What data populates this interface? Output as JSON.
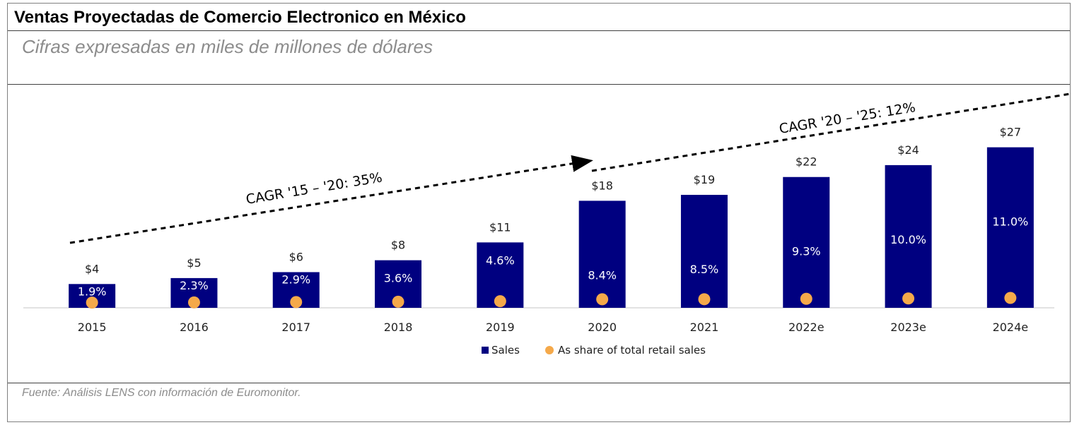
{
  "header": {
    "title": "Ventas Proyectadas de Comercio Electronico en México"
  },
  "subheader": {
    "subtitle": "Cifras expresadas en miles de millones de dólares"
  },
  "footer": {
    "source": "Fuente: Análisis LENS con información de Euromonitor."
  },
  "chart_data": {
    "type": "bar",
    "title": "",
    "xlabel": "",
    "ylabel": "",
    "categories": [
      "2015",
      "2016",
      "2017",
      "2018",
      "2019",
      "2020",
      "2021",
      "2022e",
      "2023e",
      "2024e"
    ],
    "ylim": [
      0,
      30
    ],
    "series": [
      {
        "name": "Sales",
        "values": [
          4,
          5,
          6,
          8,
          11,
          18,
          19,
          22,
          24,
          27
        ],
        "value_labels": [
          "$4",
          "$5",
          "$6",
          "$8",
          "$11",
          "$18",
          "$19",
          "$22",
          "$24",
          "$27"
        ],
        "color": "#000080"
      },
      {
        "name": "As share of total retail sales",
        "values": [
          1.9,
          2.3,
          2.9,
          3.6,
          4.6,
          8.4,
          8.5,
          9.3,
          10.0,
          11.0
        ],
        "value_labels": [
          "1.9%",
          "2.3%",
          "2.9%",
          "3.6%",
          "4.6%",
          "8.4%",
          "8.5%",
          "9.3%",
          "10.0%",
          "11.0%"
        ],
        "color": "#f5a94a"
      }
    ],
    "legend_position": "bottom-center",
    "grid": false,
    "annotations": [
      {
        "text": "CAGR '15 – '20: 35%"
      },
      {
        "text": "CAGR '20 – '25: 12%"
      }
    ]
  }
}
